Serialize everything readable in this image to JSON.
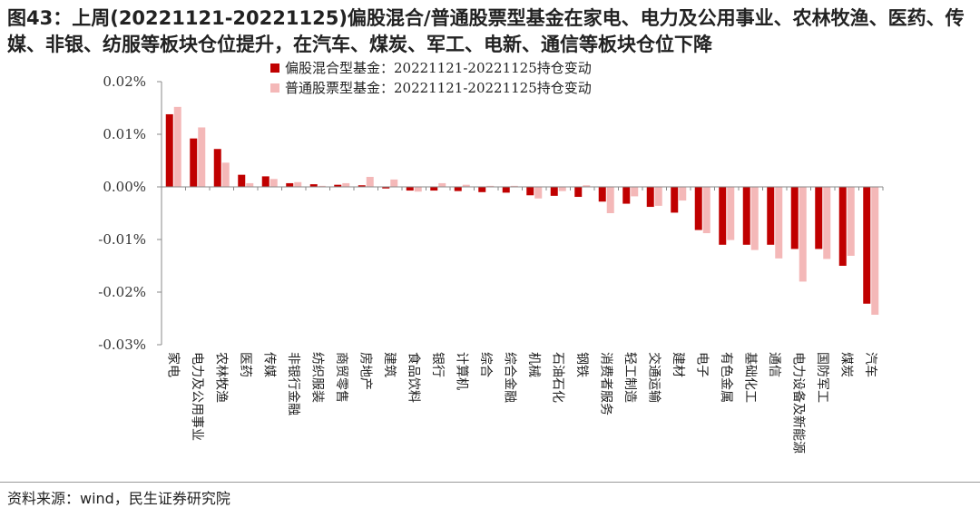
{
  "title": "图43：上周(20221121-20221125)偏股混合/普通股票型基金在家电、电力及公用事业、农林牧渔、医药、传媒、非银、纺服等板块仓位提升，在汽车、煤炭、军工、电新、通信等板块仓位下降",
  "source": "资料来源：wind，民生证券研究院",
  "colors": {
    "series1": "#c00000",
    "series2": "#f4b8b8",
    "axis": "#888888"
  },
  "chart_data": {
    "type": "bar",
    "title": "",
    "xlabel": "",
    "ylabel": "",
    "ylim": [
      -0.03,
      0.02
    ],
    "yticks": [
      0.02,
      0.01,
      0.0,
      -0.01,
      -0.02,
      -0.03
    ],
    "ytick_labels": [
      "0.02%",
      "0.01%",
      "0.00%",
      "-0.01%",
      "-0.02%",
      "-0.03%"
    ],
    "grid": false,
    "legend_position": "top",
    "categories": [
      "家电",
      "电力及公用事业",
      "农林牧渔",
      "医药",
      "传媒",
      "非银行金融",
      "纺织服装",
      "商贸零售",
      "房地产",
      "建筑",
      "食品饮料",
      "银行",
      "计算机",
      "综合",
      "综合金融",
      "机械",
      "石油石化",
      "钢铁",
      "消费者服务",
      "轻工制造",
      "交通运输",
      "建材",
      "电子",
      "有色金属",
      "基础化工",
      "通信",
      "电力设备及新能源",
      "国防军工",
      "煤炭",
      "汽车"
    ],
    "series": [
      {
        "name": "偏股混合型基金：20221121-20221125持仓变动",
        "values": [
          0.0138,
          0.0092,
          0.0072,
          0.0023,
          0.002,
          0.0007,
          0.0005,
          0.0004,
          0.0003,
          -0.0003,
          -0.0007,
          -0.0007,
          -0.0008,
          -0.001,
          -0.0011,
          -0.0016,
          -0.0017,
          -0.0019,
          -0.0028,
          -0.0032,
          -0.0038,
          -0.0049,
          -0.0082,
          -0.011,
          -0.011,
          -0.011,
          -0.0118,
          -0.0118,
          -0.015,
          -0.0222
        ]
      },
      {
        "name": "普通股票型基金：20221121-20221125持仓变动",
        "values": [
          0.0152,
          0.0113,
          0.0046,
          0.0007,
          0.0015,
          0.0009,
          0.0002,
          0.0007,
          0.0019,
          0.0014,
          -0.0009,
          0.0007,
          0.0004,
          0.0002,
          0.0002,
          -0.0022,
          -0.0008,
          0.0003,
          -0.005,
          -0.0018,
          -0.0036,
          -0.0026,
          -0.0088,
          -0.0101,
          -0.012,
          -0.0136,
          -0.018,
          -0.0137,
          -0.0131,
          -0.0243
        ]
      }
    ]
  }
}
